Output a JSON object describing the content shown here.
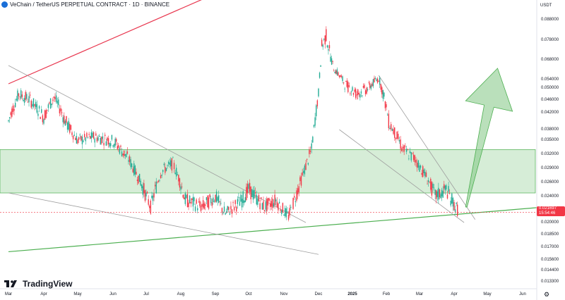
{
  "header": {
    "title": "VeChain / TetherUS PERPETUAL CONTRACT · 1D · BINANCE",
    "currency": "USDT"
  },
  "price_tag": {
    "price": "0.021697",
    "countdown": "15:54:46"
  },
  "footer": {
    "logo_text": "TradingView",
    "settings_icon": "gear-icon"
  },
  "colors": {
    "up": "#22ab94",
    "down": "#f23645",
    "zone": "#a5d6a7",
    "resistance": "#e8364e",
    "support": "#4caf50",
    "trend": "#9e9e9e",
    "arrow": "#81c784"
  },
  "chart_data": {
    "type": "candlestick",
    "title": "VeChain / TetherUS PERPETUAL CONTRACT · 1D · BINANCE",
    "ylabel": "USDT",
    "y_ticks": [
      "0.088000",
      "0.078000",
      "0.068000",
      "0.054000",
      "0.050000",
      "0.046000",
      "0.042000",
      "0.038000",
      "0.035000",
      "0.032000",
      "0.029000",
      "0.026000",
      "0.024000",
      "0.022000",
      "0.020000",
      "0.018500",
      "0.017000",
      "0.015600",
      "0.014400",
      "0.013300"
    ],
    "x_ticks": [
      "Mar",
      "Apr",
      "May",
      "Jun",
      "Jul",
      "Aug",
      "Sep",
      "Oct",
      "Nov",
      "Dec",
      "2025",
      "Feb",
      "Mar",
      "Apr",
      "May",
      "Jun"
    ],
    "last_price": 0.021697,
    "price_path": [
      [
        "2024-03-01",
        0.04
      ],
      [
        "2024-03-10",
        0.048
      ],
      [
        "2024-03-20",
        0.046
      ],
      [
        "2024-04-01",
        0.041
      ],
      [
        "2024-04-10",
        0.047
      ],
      [
        "2024-04-20",
        0.04
      ],
      [
        "2024-05-01",
        0.035
      ],
      [
        "2024-05-15",
        0.036
      ],
      [
        "2024-06-01",
        0.035
      ],
      [
        "2024-06-15",
        0.031
      ],
      [
        "2024-07-01",
        0.024
      ],
      [
        "2024-07-05",
        0.0225
      ],
      [
        "2024-07-15",
        0.0285
      ],
      [
        "2024-07-25",
        0.03
      ],
      [
        "2024-08-05",
        0.0235
      ],
      [
        "2024-08-20",
        0.0225
      ],
      [
        "2024-09-01",
        0.024
      ],
      [
        "2024-09-10",
        0.0215
      ],
      [
        "2024-09-25",
        0.0235
      ],
      [
        "2024-10-01",
        0.025
      ],
      [
        "2024-10-15",
        0.0225
      ],
      [
        "2024-10-25",
        0.0235
      ],
      [
        "2024-11-05",
        0.021
      ],
      [
        "2024-11-15",
        0.026
      ],
      [
        "2024-11-25",
        0.033
      ],
      [
        "2024-12-01",
        0.048
      ],
      [
        "2024-12-04",
        0.075
      ],
      [
        "2024-12-08",
        0.08
      ],
      [
        "2024-12-15",
        0.062
      ],
      [
        "2024-12-25",
        0.052
      ],
      [
        "2025-01-05",
        0.048
      ],
      [
        "2025-01-15",
        0.05
      ],
      [
        "2025-01-25",
        0.055
      ],
      [
        "2025-02-03",
        0.04
      ],
      [
        "2025-02-15",
        0.033
      ],
      [
        "2025-02-25",
        0.031
      ],
      [
        "2025-03-05",
        0.028
      ],
      [
        "2025-03-15",
        0.024
      ],
      [
        "2025-03-25",
        0.025
      ],
      [
        "2025-04-05",
        0.0217
      ]
    ],
    "support_resistance_zone": {
      "low": 0.0245,
      "high": 0.033
    },
    "lines": [
      {
        "name": "ascending resistance",
        "from": [
          "2024-03-01",
          0.052
        ],
        "to": [
          "2025-04-15",
          0.155
        ]
      },
      {
        "name": "ascending support",
        "from": [
          "2024-03-01",
          0.0165
        ],
        "to": [
          "2025-06-20",
          0.0225
        ]
      },
      {
        "name": "descending trendline",
        "from": [
          "2024-03-01",
          0.064
        ],
        "to": [
          "2024-11-20",
          0.02
        ]
      },
      {
        "name": "lower descending line",
        "from": [
          "2024-03-01",
          0.0245
        ],
        "to": [
          "2024-12-01",
          0.0162
        ]
      },
      {
        "name": "falling channel upper",
        "from": [
          "2025-01-25",
          0.057
        ],
        "to": [
          "2025-04-20",
          0.0205
        ]
      },
      {
        "name": "falling channel lower",
        "from": [
          "2024-12-20",
          0.038
        ],
        "to": [
          "2025-04-10",
          0.02
        ]
      }
    ],
    "projection_arrow": {
      "from": [
        "2025-04-12",
        0.0225
      ],
      "to": [
        "2025-05-10",
        0.062
      ]
    }
  }
}
